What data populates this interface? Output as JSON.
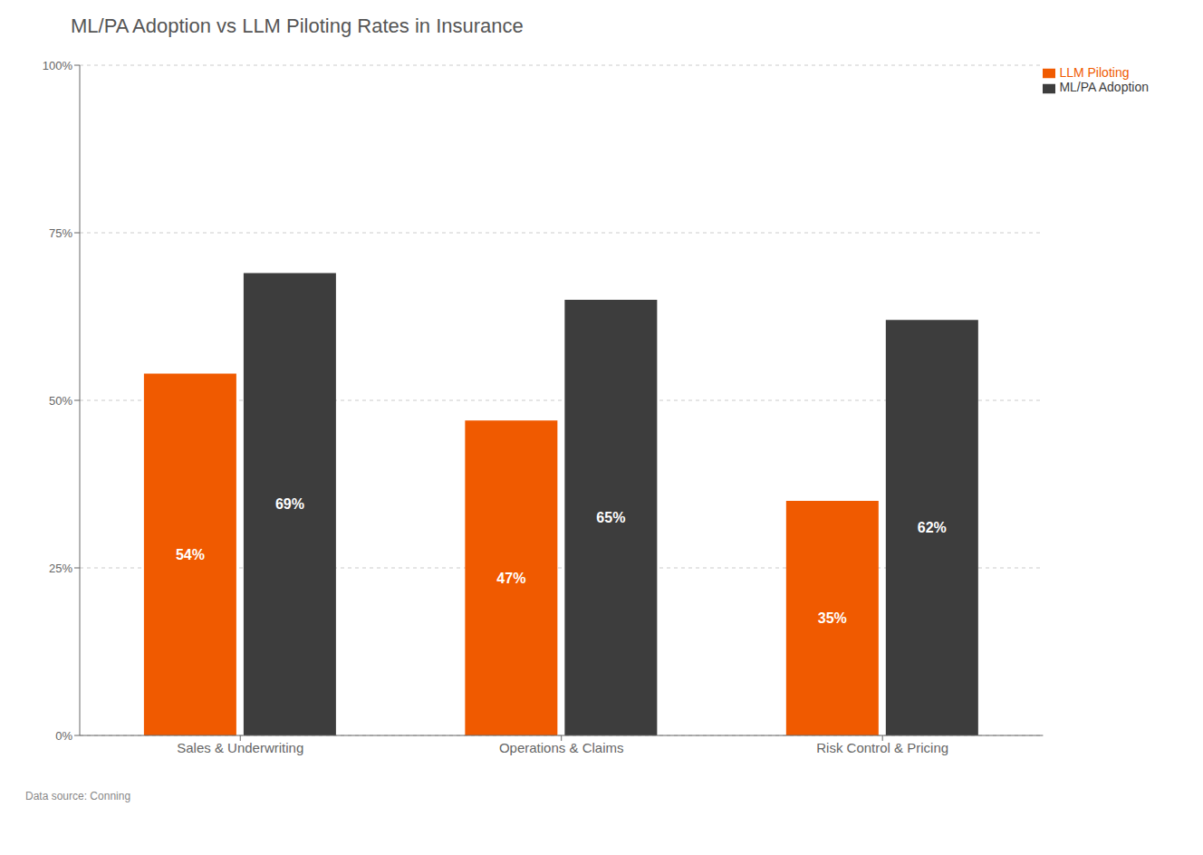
{
  "chart_data": {
    "type": "bar",
    "title": "ML/PA Adoption vs LLM Piloting Rates in Insurance",
    "categories": [
      "Sales & Underwriting",
      "Operations & Claims",
      "Risk Control & Pricing"
    ],
    "series": [
      {
        "name": "LLM Piloting",
        "color": "#F05A00",
        "values": [
          54,
          47,
          35
        ],
        "value_labels": [
          "54%",
          "47%",
          "35%"
        ]
      },
      {
        "name": "ML/PA Adoption",
        "color": "#3D3D3D",
        "values": [
          69,
          65,
          62
        ],
        "value_labels": [
          "69%",
          "65%",
          "62%"
        ]
      }
    ],
    "ylim": [
      0,
      100
    ],
    "yticks": [
      {
        "value": 0,
        "label": "0%"
      },
      {
        "value": 25,
        "label": "25%"
      },
      {
        "value": 50,
        "label": "50%"
      },
      {
        "value": 75,
        "label": "75%"
      },
      {
        "value": 100,
        "label": "100%"
      }
    ],
    "grid": true,
    "legend": "upper right",
    "data_labels": true,
    "annotations": [
      "Data source: Conning"
    ]
  }
}
